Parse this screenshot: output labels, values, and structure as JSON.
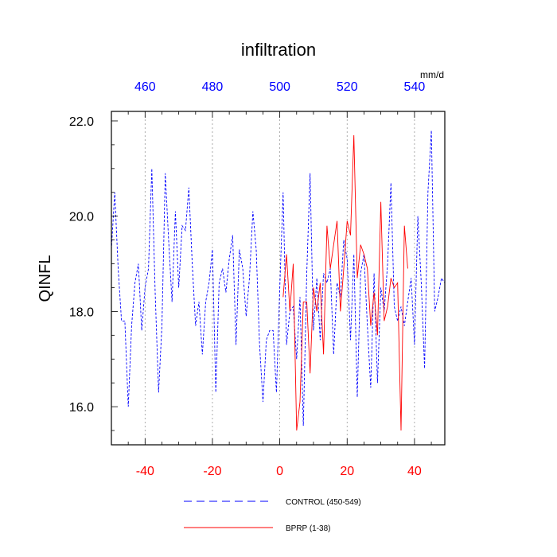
{
  "chart_data": {
    "type": "line",
    "title": "infiltration",
    "ylabel": "QINFL",
    "xlabel": "",
    "units_label": "mm/d",
    "xlim": [
      -50,
      49
    ],
    "ylim": [
      15.2,
      22.2
    ],
    "grid": "vertical dotted lines at major x ticks",
    "x_bottom_ticks": [
      "-40",
      "-20",
      "0",
      "20",
      "40"
    ],
    "x_bottom_tick_values": [
      -40,
      -20,
      0,
      20,
      40
    ],
    "x_top_ticks": [
      "460",
      "480",
      "500",
      "520",
      "540"
    ],
    "x_top_tick_values": [
      -40,
      -20,
      0,
      20,
      40
    ],
    "y_ticks": [
      "16.0",
      "18.0",
      "20.0",
      "22.0"
    ],
    "y_tick_values": [
      16.0,
      18.0,
      20.0,
      22.0
    ],
    "colors": {
      "control": "#0000ff",
      "bprp": "#ff0000",
      "bottom_ticks": "#ff0000",
      "top_ticks": "#0000ff",
      "grid": "#999999"
    },
    "legend_placement": "bottom",
    "series": [
      {
        "name": "CONTROL (450-549)",
        "style": "dashed",
        "x_start": -50,
        "values": [
          19.3,
          20.5,
          18.9,
          17.8,
          17.8,
          16.0,
          17.7,
          18.6,
          19.0,
          17.6,
          18.5,
          18.9,
          21.0,
          18.4,
          16.3,
          17.7,
          20.9,
          19.5,
          18.2,
          20.1,
          18.5,
          19.8,
          19.7,
          20.6,
          19.0,
          17.7,
          18.2,
          17.1,
          18.2,
          18.6,
          19.3,
          16.3,
          18.6,
          18.9,
          18.4,
          19.1,
          19.6,
          17.3,
          19.3,
          18.9,
          17.9,
          18.7,
          20.1,
          19.3,
          17.3,
          16.1,
          17.4,
          17.6,
          17.6,
          16.3,
          18.5,
          20.5,
          17.3,
          18.0,
          18.1,
          17.0,
          18.3,
          15.6,
          18.8,
          20.9,
          17.6,
          18.7,
          17.4,
          18.8,
          18.6,
          18.9,
          17.1,
          18.6,
          18.3,
          19.5,
          19.1,
          17.4,
          19.2,
          16.2,
          18.8,
          19.2,
          17.7,
          16.4,
          18.8,
          16.5,
          18.5,
          18.0,
          19.0,
          20.7,
          18.1,
          17.8,
          18.1,
          17.7,
          18.2,
          18.7,
          17.3,
          20.0,
          18.6,
          16.8,
          20.5,
          21.8,
          18.0,
          18.3,
          18.7,
          18.6
        ]
      },
      {
        "name": "BPRP (1-38)",
        "style": "solid",
        "x_start": 1,
        "values": [
          18.3,
          19.2,
          18.0,
          19.0,
          15.5,
          16.1,
          18.2,
          18.2,
          16.7,
          18.5,
          18.0,
          18.6,
          17.1,
          19.8,
          18.9,
          19.4,
          19.9,
          18.0,
          18.9,
          19.9,
          19.6,
          21.7,
          18.7,
          19.4,
          19.2,
          18.9,
          17.7,
          18.4,
          17.5,
          20.3,
          17.8,
          18.1,
          18.7,
          18.5,
          18.6,
          15.5,
          19.8,
          18.9
        ]
      }
    ]
  }
}
